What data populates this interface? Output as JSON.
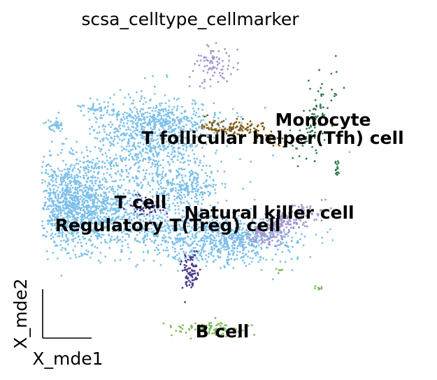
{
  "chart_data": {
    "type": "scatter",
    "title": "scsa_celltype_cellmarker",
    "xlabel": "X_mde1",
    "ylabel": "X_mde2",
    "grid": false,
    "legend": "on data",
    "clusters": [
      {
        "name": "T cell",
        "color": "#7bc0ea",
        "center": [
          195,
          290
        ]
      },
      {
        "name": "T follicular helper(Tfh) cell",
        "color": "#7f5a12",
        "center": [
          390,
          196
        ]
      },
      {
        "name": "Monocyte",
        "color": "#2e7d4a",
        "center": [
          462,
          170
        ]
      },
      {
        "name": "Natural killer cell",
        "color": "#a395cf",
        "center": [
          385,
          304
        ]
      },
      {
        "name": "Regulatory T(Treg) cell",
        "color": "#4b3a8c",
        "center": [
          240,
          322
        ]
      },
      {
        "name": "B cell",
        "color": "#7dbb5e",
        "center": [
          318,
          474
        ]
      }
    ]
  }
}
